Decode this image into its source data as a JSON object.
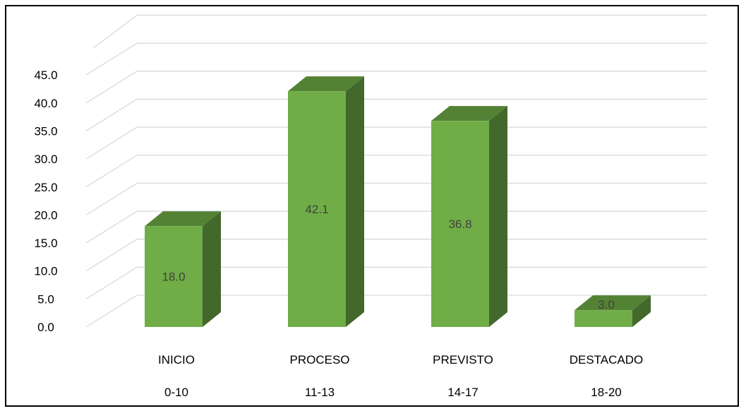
{
  "colors": {
    "bar_front": "#70ad47",
    "bar_top": "#548235",
    "bar_side": "#43682b",
    "gridline": "#d9d9d9",
    "frame": "#000000",
    "data_label": "#404040"
  },
  "chart_data": {
    "type": "bar",
    "style": "3d-column",
    "title": "",
    "xlabel": "",
    "ylabel": "",
    "ylim": [
      0,
      45
    ],
    "ytick_step": 5,
    "grid": true,
    "legend": "none",
    "categories": [
      "INICIO",
      "PROCESO",
      "PREVISTO",
      "DESTACADO"
    ],
    "category_ranges": [
      "0-10",
      "11-13",
      "14-17",
      "18-20"
    ],
    "values": [
      18.0,
      42.1,
      36.8,
      3.0
    ],
    "data_labels": [
      "18.0",
      "42.1",
      "36.8",
      "3.0"
    ]
  }
}
